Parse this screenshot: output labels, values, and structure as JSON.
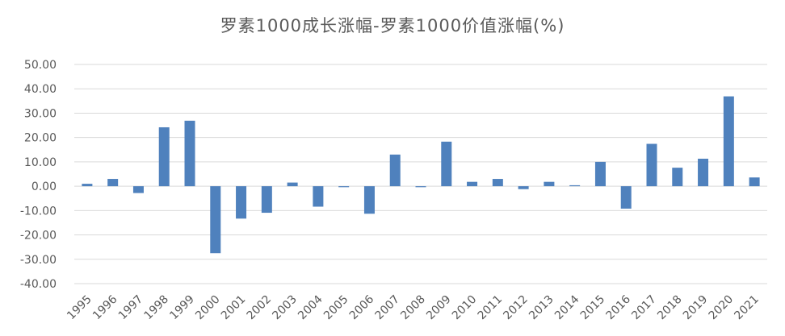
{
  "chart_data": {
    "type": "bar",
    "title": "罗素1000成长涨幅-罗素1000价值涨幅(%)",
    "xlabel": "",
    "ylabel": "",
    "ylim": [
      -40,
      50
    ],
    "yticks": [
      "50.00",
      "40.00",
      "30.00",
      "20.00",
      "10.00",
      "0.00",
      "-10.00",
      "-20.00",
      "-30.00",
      "-40.00"
    ],
    "ytick_values": [
      50,
      40,
      30,
      20,
      10,
      0,
      -10,
      -20,
      -30,
      -40
    ],
    "grid": true,
    "legend": "none",
    "bar_color": "#4f81bd",
    "categories": [
      "1995",
      "1996",
      "1997",
      "1998",
      "1999",
      "2000",
      "2001",
      "2002",
      "2003",
      "2004",
      "2005",
      "2006",
      "2007",
      "2008",
      "2009",
      "2010",
      "2011",
      "2012",
      "2013",
      "2014",
      "2015",
      "2016",
      "2017",
      "2018",
      "2019",
      "2020",
      "2021"
    ],
    "values": [
      1.0,
      3.0,
      -2.8,
      24.2,
      26.9,
      -27.5,
      -13.3,
      -10.9,
      1.5,
      -8.4,
      -0.4,
      -11.3,
      13.0,
      -0.4,
      18.3,
      1.8,
      3.0,
      -1.2,
      1.8,
      0.4,
      10.0,
      -9.2,
      17.4,
      7.6,
      11.3,
      36.9,
      3.6
    ]
  }
}
